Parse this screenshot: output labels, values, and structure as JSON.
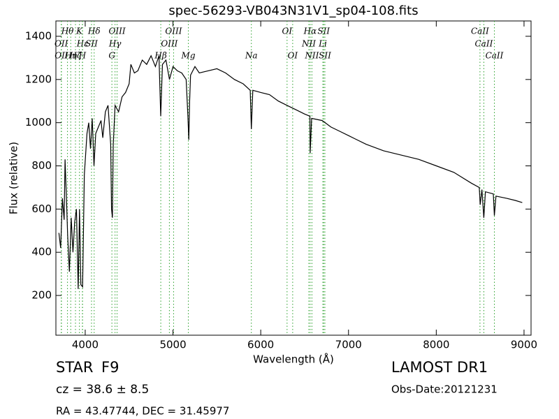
{
  "chart_data": {
    "type": "line",
    "title": "spec-56293-VB043N31V1_sp04-108.fits",
    "xlabel": "Wavelength (Å)",
    "ylabel": "Flux (relative)",
    "xlim": [
      3666,
      9080
    ],
    "ylim": [
      16,
      1471
    ],
    "xticks": [
      4000,
      5000,
      6000,
      7000,
      8000,
      9000
    ],
    "yticks": [
      200,
      400,
      600,
      800,
      1000,
      1200,
      1400
    ],
    "color": "#000000",
    "marker_color": "#2ca02c",
    "x": [
      3700,
      3720,
      3740,
      3760,
      3770,
      3790,
      3800,
      3820,
      3840,
      3860,
      3880,
      3900,
      3920,
      3935,
      3950,
      3970,
      3990,
      4020,
      4040,
      4060,
      4080,
      4100,
      4120,
      4150,
      4180,
      4200,
      4230,
      4260,
      4290,
      4300,
      4310,
      4320,
      4340,
      4380,
      4420,
      4460,
      4500,
      4520,
      4560,
      4600,
      4650,
      4700,
      4750,
      4800,
      4840,
      4860,
      4880,
      4920,
      4960,
      5000,
      5050,
      5100,
      5150,
      5170,
      5180,
      5190,
      5200,
      5250,
      5300,
      5400,
      5500,
      5600,
      5700,
      5800,
      5880,
      5893,
      5910,
      6000,
      6100,
      6200,
      6300,
      6400,
      6500,
      6560,
      6563,
      6580,
      6700,
      6800,
      6900,
      7000,
      7200,
      7400,
      7600,
      7800,
      8000,
      8200,
      8400,
      8490,
      8500,
      8520,
      8542,
      8560,
      8650,
      8662,
      8680,
      8800,
      8900,
      8980
    ],
    "values": [
      490,
      420,
      650,
      550,
      830,
      600,
      480,
      310,
      560,
      400,
      540,
      600,
      230,
      600,
      250,
      240,
      760,
      950,
      1000,
      880,
      1020,
      800,
      950,
      980,
      1010,
      930,
      1050,
      1080,
      900,
      600,
      560,
      900,
      1080,
      1050,
      1120,
      1140,
      1180,
      1270,
      1230,
      1240,
      1290,
      1270,
      1310,
      1260,
      1310,
      1030,
      1270,
      1290,
      1200,
      1260,
      1240,
      1230,
      1200,
      1030,
      920,
      1100,
      1220,
      1260,
      1230,
      1240,
      1250,
      1230,
      1200,
      1180,
      1150,
      970,
      1150,
      1140,
      1130,
      1100,
      1080,
      1060,
      1040,
      1030,
      860,
      1020,
      1010,
      980,
      960,
      940,
      900,
      870,
      850,
      830,
      800,
      770,
      720,
      700,
      620,
      690,
      560,
      680,
      670,
      570,
      660,
      650,
      640,
      630
    ],
    "marker_rows": [
      [
        {
          "label": "Hθ",
          "x": 3798
        },
        {
          "label": "K",
          "x": 3934
        },
        {
          "label": "Hδ",
          "x": 4102
        },
        {
          "label": "OIII",
          "x": 4363
        },
        {
          "label": "OIII",
          "x": 5007
        },
        {
          "label": "OI",
          "x": 6300
        },
        {
          "label": "Hα",
          "x": 6563
        },
        {
          "label": "SII",
          "x": 6717
        },
        {
          "label": "CaII",
          "x": 8498
        }
      ],
      [
        {
          "label": "OII",
          "x": 3727
        },
        {
          "label": "Hε",
          "x": 3970
        },
        {
          "label": "SII",
          "x": 4072
        },
        {
          "label": "Hγ",
          "x": 4340
        },
        {
          "label": "OIII",
          "x": 4959
        },
        {
          "label": "NII",
          "x": 6548
        },
        {
          "label": "Li",
          "x": 6708
        },
        {
          "label": "CaII",
          "x": 8542
        }
      ],
      [
        {
          "label": "OII",
          "x": 3729
        },
        {
          "label": "Hη",
          "x": 3835
        },
        {
          "label": "Hζ",
          "x": 3889
        },
        {
          "label": "H",
          "x": 3968
        },
        {
          "label": "G",
          "x": 4304
        },
        {
          "label": "Hβ",
          "x": 4861
        },
        {
          "label": "Mg",
          "x": 5175
        },
        {
          "label": "Na",
          "x": 5893
        },
        {
          "label": "OI",
          "x": 6364
        },
        {
          "label": "NII",
          "x": 6583
        },
        {
          "label": "SII",
          "x": 6731
        },
        {
          "label": "CaII",
          "x": 8662
        }
      ]
    ],
    "info": {
      "class_label": "STAR",
      "subclass": "F9",
      "redshift": "cz = 38.6 ± 8.5",
      "coords": "RA = 43.47744, DEC = 31.45977",
      "survey": "LAMOST DR1",
      "obs_date": "Obs-Date:20121231"
    }
  }
}
